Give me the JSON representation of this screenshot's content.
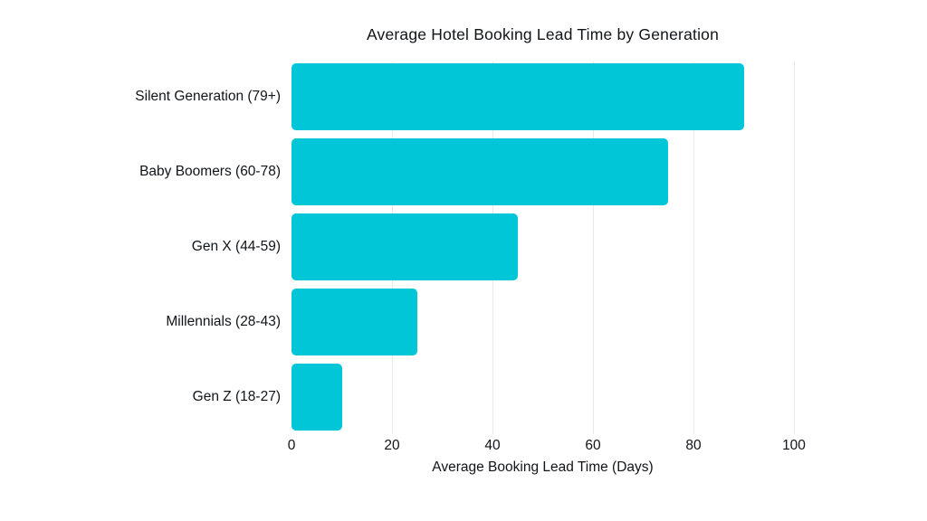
{
  "chart_data": {
    "type": "bar",
    "orientation": "horizontal",
    "title": "Average Hotel Booking Lead Time by Generation",
    "categories": [
      "Silent Generation (79+)",
      "Baby Boomers (60-78)",
      "Gen X (44-59)",
      "Millennials (28-43)",
      "Gen Z (18-27)"
    ],
    "values": [
      90,
      75,
      45,
      25,
      10
    ],
    "xlabel": "Average Booking Lead Time (Days)",
    "ylabel": "",
    "xlim": [
      0,
      100
    ],
    "xticks": [
      0,
      20,
      40,
      60,
      80,
      100
    ],
    "grid": true,
    "legend": false,
    "colors": {
      "bar": "#00C6D8",
      "gridline": "#E9E9E9",
      "text": "#111418",
      "background": "#FFFFFF"
    }
  }
}
